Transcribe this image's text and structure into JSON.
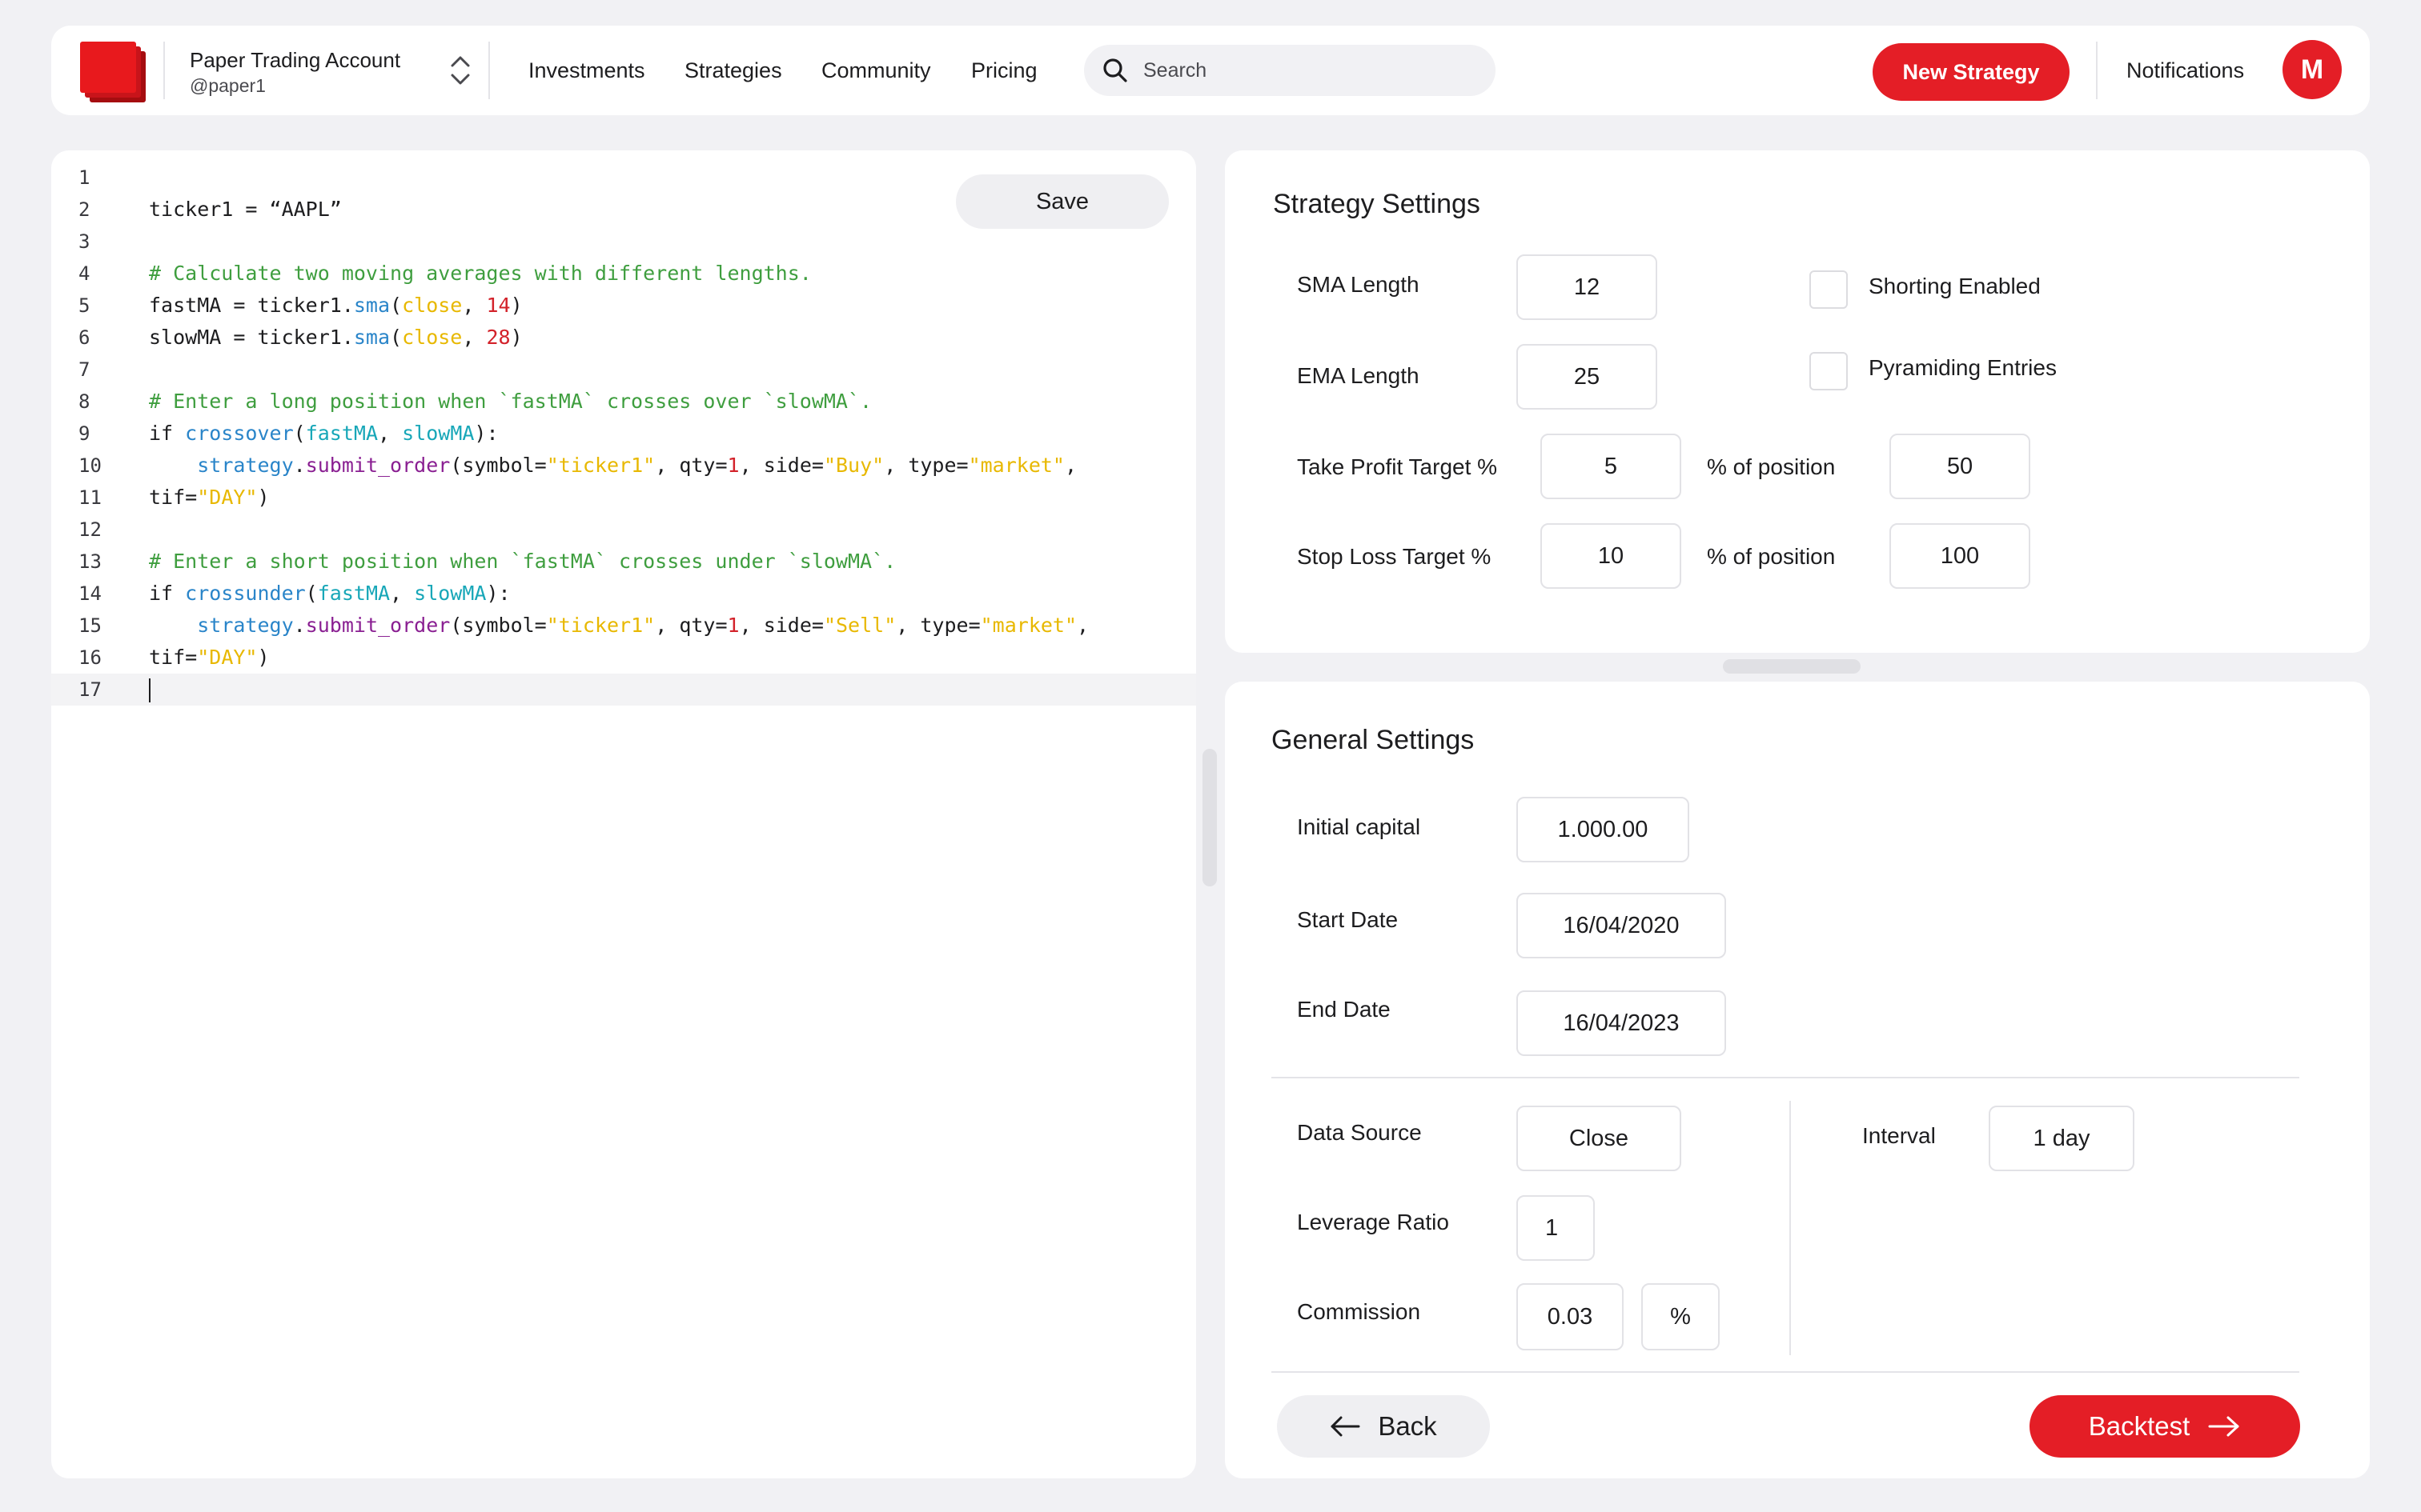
{
  "header": {
    "account_name": "Paper Trading Account",
    "account_handle": "@paper1",
    "nav": [
      "Investments",
      "Strategies",
      "Community",
      "Pricing"
    ],
    "search_placeholder": "Search",
    "new_strategy_label": "New Strategy",
    "notifications_label": "Notifications",
    "avatar_initial": "M",
    "accent_color": "#e41e26"
  },
  "editor": {
    "save_label": "Save",
    "active_line": 17,
    "line_numbers": [
      "1",
      "2",
      "3",
      "4",
      "5",
      "6",
      "7",
      "8",
      "9",
      "10",
      "11",
      "12",
      "13",
      "14",
      "15",
      "16",
      "17"
    ],
    "lines": [
      "",
      "ticker1 = “AAPL”",
      "",
      "# Calculate two moving averages with different lengths.",
      "fastMA = ticker1.sma(close, 14)",
      "slowMA = ticker1.sma(close, 28)",
      "",
      "# Enter a long position when `fastMA` crosses over `slowMA`.",
      "if crossover(fastMA, slowMA):",
      "    strategy.submit_order(symbol=\"ticker1\", qty=1, side=\"Buy\", type=\"market\",",
      "tif=\"DAY\")",
      "",
      "# Enter a short position when `fastMA` crosses under `slowMA`.",
      "if crossunder(fastMA, slowMA):",
      "    strategy.submit_order(symbol=\"ticker1\", qty=1, side=\"Sell\", type=\"market\",",
      "tif=\"DAY\")",
      ""
    ]
  },
  "strategy_settings": {
    "title": "Strategy Settings",
    "sma_length_label": "SMA Length",
    "sma_length": "12",
    "ema_length_label": "EMA Length",
    "ema_length": "25",
    "shorting_label": "Shorting Enabled",
    "shorting_checked": false,
    "pyramiding_label": "Pyramiding Entries",
    "pyramiding_checked": false,
    "take_profit_label": "Take Profit Target %",
    "take_profit": "5",
    "take_profit_pos_label": "% of position",
    "take_profit_pos": "50",
    "stop_loss_label": "Stop Loss Target %",
    "stop_loss": "10",
    "stop_loss_pos_label": "% of position",
    "stop_loss_pos": "100"
  },
  "general_settings": {
    "title": "General Settings",
    "initial_capital_label": "Initial capital",
    "initial_capital": "1.000.00",
    "start_date_label": "Start Date",
    "start_date": "16/04/2020",
    "end_date_label": "End Date",
    "end_date": "16/04/2023",
    "data_source_label": "Data Source",
    "data_source": "Close",
    "interval_label": "Interval",
    "interval": "1 day",
    "leverage_label": "Leverage Ratio",
    "leverage": "1",
    "commission_label": "Commission",
    "commission": "0.03",
    "commission_unit": "%"
  },
  "footer": {
    "back_label": "Back",
    "backtest_label": "Backtest"
  }
}
